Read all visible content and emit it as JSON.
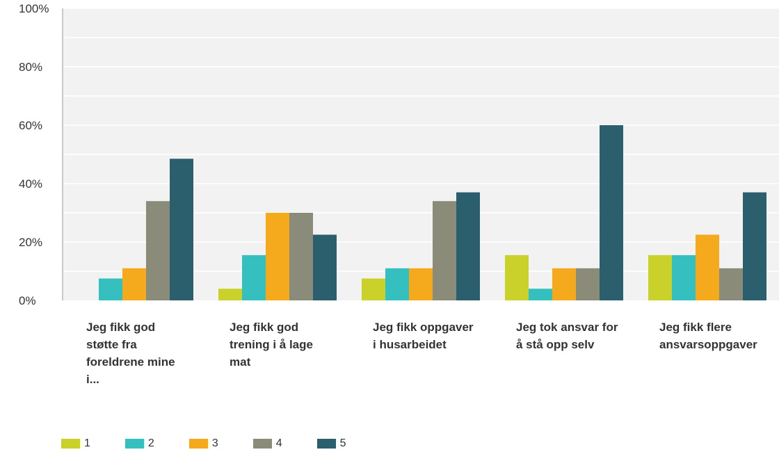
{
  "chart_data": {
    "type": "bar",
    "categories": [
      "Jeg fikk god støtte fra foreldrene mine i...",
      "Jeg fikk god trening i å lage mat",
      "Jeg fikk oppgaver i husarbeidet",
      "Jeg tok ansvar for å stå opp selv",
      "Jeg fikk flere ansvarsoppgaver"
    ],
    "series": [
      {
        "name": "1",
        "color": "#c9d12a",
        "values": [
          0,
          4,
          7.5,
          15.5,
          15.5
        ]
      },
      {
        "name": "2",
        "color": "#35bfbf",
        "values": [
          7.5,
          15.5,
          11,
          4,
          15.5
        ]
      },
      {
        "name": "3",
        "color": "#f5aa1e",
        "values": [
          11,
          30,
          11,
          11,
          22.5
        ]
      },
      {
        "name": "4",
        "color": "#8a8b79",
        "values": [
          34,
          30,
          34,
          11,
          11
        ]
      },
      {
        "name": "5",
        "color": "#2c5f6d",
        "values": [
          48.5,
          22.5,
          37,
          60,
          37
        ]
      }
    ],
    "ylim": [
      0,
      100
    ],
    "yticks": [
      "0%",
      "20%",
      "40%",
      "60%",
      "80%",
      "100%"
    ],
    "grid": true,
    "legend_position": "bottom-left",
    "title": "",
    "xlabel": "",
    "ylabel": ""
  }
}
